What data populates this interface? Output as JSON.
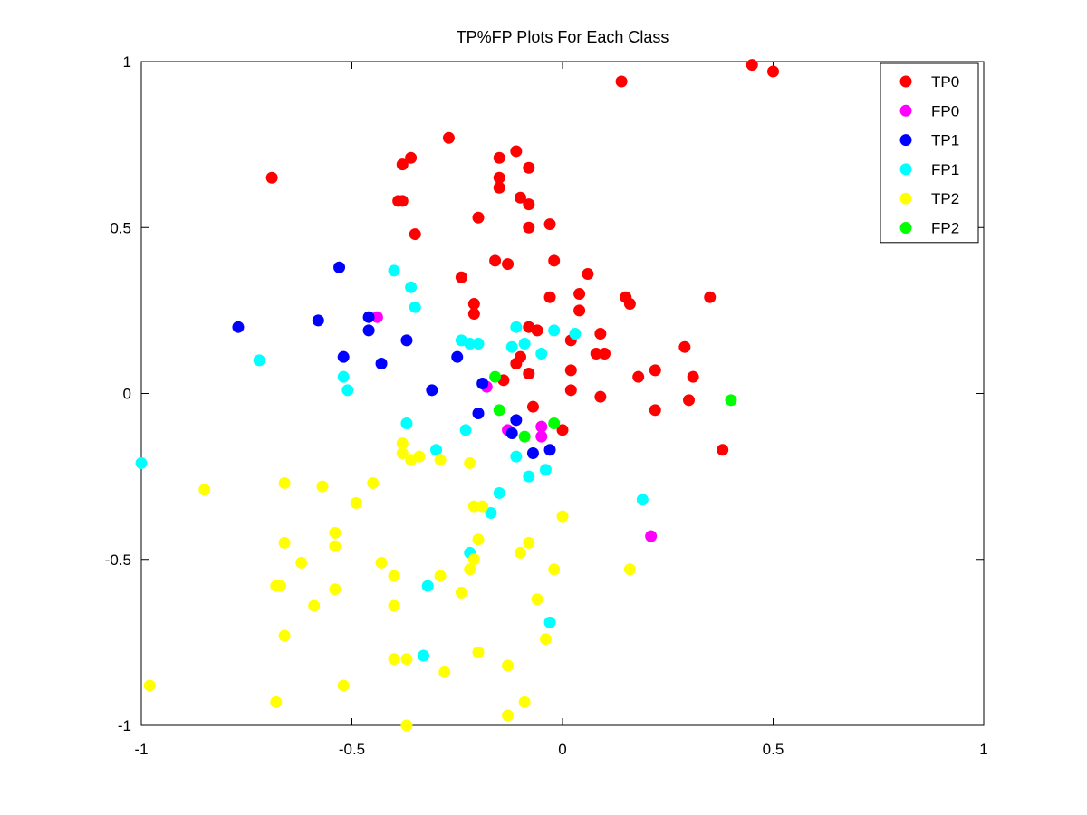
{
  "chart_data": {
    "type": "scatter",
    "title": "TP%FP Plots For Each Class",
    "xlabel": "",
    "ylabel": "",
    "xlim": [
      -1,
      1
    ],
    "ylim": [
      -1,
      1
    ],
    "x_ticks": [
      -1,
      -0.5,
      0,
      0.5,
      1
    ],
    "y_ticks": [
      -1,
      -0.5,
      0,
      0.5,
      1
    ],
    "x_tick_labels": [
      "-1",
      "-0.5",
      "0",
      "0.5",
      "1"
    ],
    "y_tick_labels": [
      "-1",
      "-0.5",
      "0",
      "0.5",
      "1"
    ],
    "grid": false,
    "legend_position": "top-right",
    "series": [
      {
        "name": "TP0",
        "color": "#ff0000",
        "points": [
          [
            0.45,
            0.99
          ],
          [
            0.5,
            0.97
          ],
          [
            0.14,
            0.94
          ],
          [
            -0.69,
            0.65
          ],
          [
            -0.27,
            0.77
          ],
          [
            -0.36,
            0.71
          ],
          [
            -0.38,
            0.69
          ],
          [
            -0.15,
            0.71
          ],
          [
            -0.11,
            0.73
          ],
          [
            -0.15,
            0.65
          ],
          [
            -0.15,
            0.62
          ],
          [
            -0.08,
            0.68
          ],
          [
            -0.38,
            0.58
          ],
          [
            -0.39,
            0.58
          ],
          [
            -0.1,
            0.59
          ],
          [
            -0.08,
            0.57
          ],
          [
            -0.2,
            0.53
          ],
          [
            -0.03,
            0.51
          ],
          [
            -0.08,
            0.5
          ],
          [
            -0.35,
            0.48
          ],
          [
            -0.16,
            0.4
          ],
          [
            -0.13,
            0.39
          ],
          [
            -0.02,
            0.4
          ],
          [
            0.06,
            0.36
          ],
          [
            -0.24,
            0.35
          ],
          [
            -0.21,
            0.27
          ],
          [
            -0.21,
            0.24
          ],
          [
            -0.03,
            0.29
          ],
          [
            0.04,
            0.3
          ],
          [
            0.15,
            0.29
          ],
          [
            0.16,
            0.27
          ],
          [
            0.35,
            0.29
          ],
          [
            0.04,
            0.25
          ],
          [
            -0.08,
            0.2
          ],
          [
            -0.06,
            0.19
          ],
          [
            0.02,
            0.16
          ],
          [
            0.09,
            0.18
          ],
          [
            0.29,
            0.14
          ],
          [
            0.08,
            0.12
          ],
          [
            0.1,
            0.12
          ],
          [
            -0.1,
            0.11
          ],
          [
            -0.11,
            0.09
          ],
          [
            -0.14,
            0.04
          ],
          [
            -0.08,
            0.06
          ],
          [
            0.02,
            0.07
          ],
          [
            0.18,
            0.05
          ],
          [
            0.22,
            0.07
          ],
          [
            0.31,
            0.05
          ],
          [
            0.02,
            0.01
          ],
          [
            0.09,
            -0.01
          ],
          [
            0.3,
            -0.02
          ],
          [
            -0.07,
            -0.04
          ],
          [
            0.22,
            -0.05
          ],
          [
            0.0,
            -0.11
          ],
          [
            0.38,
            -0.17
          ]
        ]
      },
      {
        "name": "FP0",
        "color": "#ff00ff",
        "points": [
          [
            -0.44,
            0.23
          ],
          [
            -0.18,
            0.02
          ],
          [
            -0.05,
            -0.1
          ],
          [
            -0.13,
            -0.11
          ],
          [
            -0.05,
            -0.13
          ],
          [
            0.21,
            -0.43
          ]
        ]
      },
      {
        "name": "TP1",
        "color": "#0000ff",
        "points": [
          [
            -0.77,
            0.2
          ],
          [
            -0.53,
            0.38
          ],
          [
            -0.58,
            0.22
          ],
          [
            -0.46,
            0.23
          ],
          [
            -0.46,
            0.19
          ],
          [
            -0.52,
            0.11
          ],
          [
            -0.37,
            0.16
          ],
          [
            -0.43,
            0.09
          ],
          [
            -0.25,
            0.11
          ],
          [
            -0.31,
            0.01
          ],
          [
            -0.19,
            0.03
          ],
          [
            -0.2,
            -0.06
          ],
          [
            -0.11,
            -0.08
          ],
          [
            -0.12,
            -0.12
          ],
          [
            -0.07,
            -0.18
          ],
          [
            -0.03,
            -0.17
          ]
        ]
      },
      {
        "name": "FP1",
        "color": "#00ffff",
        "points": [
          [
            -1.0,
            -0.21
          ],
          [
            -0.72,
            0.1
          ],
          [
            -0.4,
            0.37
          ],
          [
            -0.36,
            0.32
          ],
          [
            -0.35,
            0.26
          ],
          [
            -0.52,
            0.05
          ],
          [
            -0.51,
            0.01
          ],
          [
            -0.24,
            0.16
          ],
          [
            -0.22,
            0.15
          ],
          [
            -0.2,
            0.15
          ],
          [
            -0.11,
            0.2
          ],
          [
            -0.09,
            0.15
          ],
          [
            -0.12,
            0.14
          ],
          [
            -0.05,
            0.12
          ],
          [
            -0.02,
            0.19
          ],
          [
            0.03,
            0.18
          ],
          [
            -0.37,
            -0.09
          ],
          [
            -0.3,
            -0.17
          ],
          [
            -0.23,
            -0.11
          ],
          [
            -0.11,
            -0.19
          ],
          [
            -0.08,
            -0.25
          ],
          [
            -0.04,
            -0.23
          ],
          [
            -0.15,
            -0.3
          ],
          [
            -0.17,
            -0.36
          ],
          [
            -0.22,
            -0.48
          ],
          [
            0.19,
            -0.32
          ],
          [
            -0.32,
            -0.58
          ],
          [
            -0.33,
            -0.79
          ],
          [
            -0.03,
            -0.69
          ]
        ]
      },
      {
        "name": "TP2",
        "color": "#ffff00",
        "points": [
          [
            -0.85,
            -0.29
          ],
          [
            -0.98,
            -0.88
          ],
          [
            -0.66,
            -0.27
          ],
          [
            -0.57,
            -0.28
          ],
          [
            -0.49,
            -0.33
          ],
          [
            -0.45,
            -0.27
          ],
          [
            -0.38,
            -0.15
          ],
          [
            -0.38,
            -0.18
          ],
          [
            -0.36,
            -0.2
          ],
          [
            -0.34,
            -0.19
          ],
          [
            -0.29,
            -0.2
          ],
          [
            -0.22,
            -0.21
          ],
          [
            -0.21,
            -0.34
          ],
          [
            -0.19,
            -0.34
          ],
          [
            -0.2,
            -0.44
          ],
          [
            -0.21,
            -0.5
          ],
          [
            -0.22,
            -0.53
          ],
          [
            -0.1,
            -0.48
          ],
          [
            -0.08,
            -0.45
          ],
          [
            0.0,
            -0.37
          ],
          [
            -0.54,
            -0.42
          ],
          [
            -0.54,
            -0.46
          ],
          [
            -0.66,
            -0.45
          ],
          [
            -0.62,
            -0.51
          ],
          [
            -0.43,
            -0.51
          ],
          [
            -0.4,
            -0.55
          ],
          [
            -0.29,
            -0.55
          ],
          [
            -0.68,
            -0.58
          ],
          [
            -0.67,
            -0.58
          ],
          [
            -0.54,
            -0.59
          ],
          [
            -0.59,
            -0.64
          ],
          [
            -0.4,
            -0.64
          ],
          [
            -0.24,
            -0.6
          ],
          [
            -0.02,
            -0.53
          ],
          [
            0.16,
            -0.53
          ],
          [
            -0.06,
            -0.62
          ],
          [
            -0.66,
            -0.73
          ],
          [
            -0.04,
            -0.74
          ],
          [
            -0.4,
            -0.8
          ],
          [
            -0.37,
            -0.8
          ],
          [
            -0.2,
            -0.78
          ],
          [
            -0.28,
            -0.84
          ],
          [
            -0.13,
            -0.82
          ],
          [
            -0.68,
            -0.93
          ],
          [
            -0.52,
            -0.88
          ],
          [
            -0.09,
            -0.93
          ],
          [
            -0.13,
            -0.97
          ],
          [
            -0.37,
            -1.0
          ]
        ]
      },
      {
        "name": "FP2",
        "color": "#00ff00",
        "points": [
          [
            -0.16,
            0.05
          ],
          [
            -0.15,
            -0.05
          ],
          [
            -0.02,
            -0.09
          ],
          [
            -0.09,
            -0.13
          ],
          [
            0.4,
            -0.02
          ]
        ]
      }
    ]
  }
}
